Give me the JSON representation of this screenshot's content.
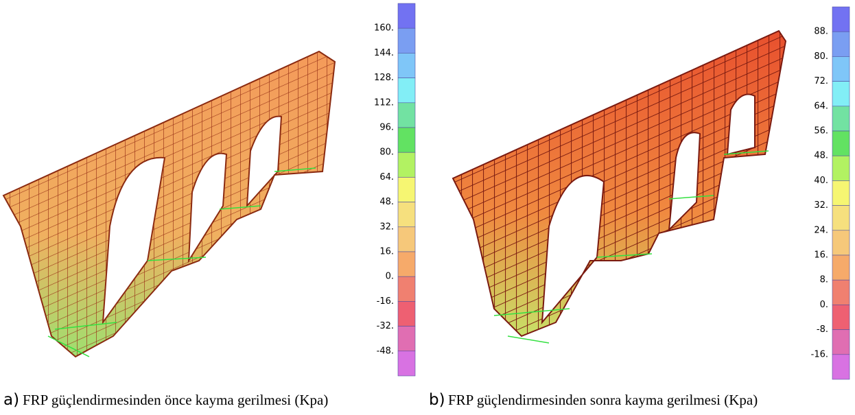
{
  "panels": [
    {
      "caption_letter": "a)",
      "caption": "FRP güçlendirmesinden önce kayma gerilmesi (Kpa)",
      "scale": {
        "labels": [
          "160.",
          "144.",
          "128.",
          "112.",
          "96.",
          "80.",
          "64.",
          "48.",
          "32.",
          "16.",
          "0.",
          "-16.",
          "-32.",
          "-48."
        ],
        "colors": [
          "#7272f2",
          "#7a9ef2",
          "#7fc6f8",
          "#82eef6",
          "#72e2a2",
          "#62e262",
          "#b2f262",
          "#f6f672",
          "#f6e07e",
          "#f6c87a",
          "#f6aa6a",
          "#f08070",
          "#ee6072",
          "#e06eb2",
          "#d872e2"
        ]
      }
    },
    {
      "caption_letter": "b)",
      "caption": "FRP güçlendirmesinden sonra kayma gerilmesi (Kpa)",
      "scale": {
        "labels": [
          "88.",
          "80.",
          "72.",
          "64.",
          "56.",
          "48.",
          "40.",
          "32.",
          "24.",
          "16.",
          "8.",
          "0.",
          "-8.",
          "-16."
        ],
        "colors": [
          "#7272f2",
          "#7a9ef2",
          "#7fc6f8",
          "#82eef6",
          "#72e2a2",
          "#62e262",
          "#b2f262",
          "#f6f672",
          "#f6e07e",
          "#f6c87a",
          "#f6aa6a",
          "#f08070",
          "#ee6072",
          "#e06eb2",
          "#d872e2"
        ]
      }
    }
  ]
}
